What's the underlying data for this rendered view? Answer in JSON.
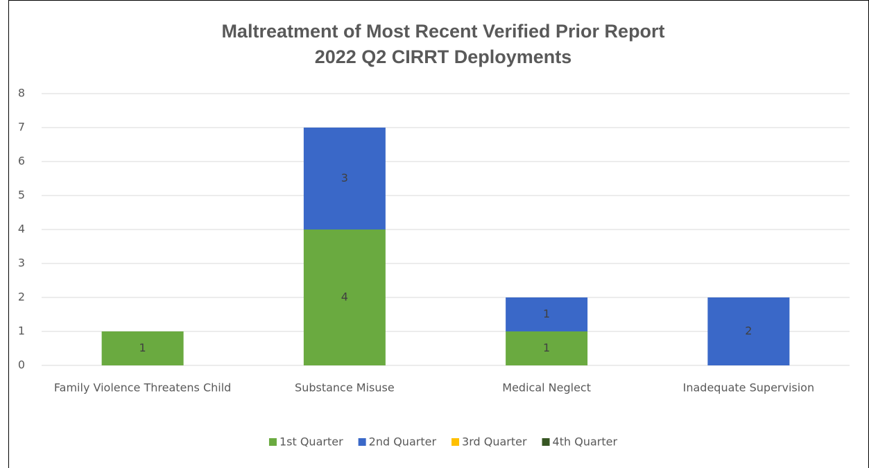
{
  "chart_data": {
    "type": "stacked_bar",
    "title": [
      "Maltreatment of Most Recent Verified Prior Report",
      "2022 Q2 CIRRT Deployments"
    ],
    "categories": [
      "Family Violence Threatens Child",
      "Substance Misuse",
      "Medical Neglect",
      "Inadequate Supervision"
    ],
    "series": [
      {
        "name": "1st Quarter",
        "color": "#6aaa40",
        "values": [
          1,
          4,
          1,
          0
        ]
      },
      {
        "name": "2nd Quarter",
        "color": "#3a68c8",
        "values": [
          0,
          3,
          1,
          2
        ]
      },
      {
        "name": "3rd Quarter",
        "color": "#ffc000",
        "values": [
          0,
          0,
          0,
          0
        ]
      },
      {
        "name": "4th Quarter",
        "color": "#375623",
        "values": [
          0,
          0,
          0,
          0
        ]
      }
    ],
    "ylim": [
      0,
      8
    ],
    "yticks": [
      0,
      1,
      2,
      3,
      4,
      5,
      6,
      7,
      8
    ],
    "grid": true,
    "legend": "bottom"
  }
}
